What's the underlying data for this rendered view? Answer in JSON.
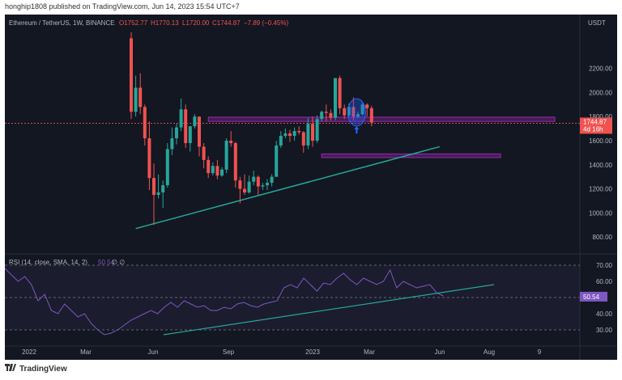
{
  "publisher": "honghip1808 published on TradingView.com, Jun 14, 2023 15:54 UTC+7",
  "footer_brand": "TradingView",
  "colors": {
    "background": "#131722",
    "bull": "#26a69a",
    "bear": "#ef5350",
    "trendline": "#26a69a",
    "zone": "#9c27b0",
    "rsi_line": "#7e57c2",
    "highlight": "#2962ff"
  },
  "chart_data": [
    {
      "type": "candlestick",
      "title": "Ethereum / TetherUS, 1W, BINANCE",
      "ohlc_header": {
        "open": "O1752.77",
        "high": "H1770.13",
        "low": "L1720.00",
        "close": "C1744.87",
        "change": "−7.89 (−0.45%)"
      },
      "currency": "USDT",
      "y_ticks": [
        "2200.00",
        "2000.00",
        "1800.00",
        "1600.00",
        "1400.00",
        "1200.00",
        "1000.00",
        "800.00"
      ],
      "ylim": [
        700,
        2500
      ],
      "x_ticks": [
        "2022",
        "Mar",
        "Jun",
        "Sep",
        "2023",
        "Mar",
        "Jun",
        "Aug",
        "9"
      ],
      "last_price": "1744.87",
      "countdown": "4d 16h",
      "candles": [
        [
          2450,
          2500,
          1780,
          1840
        ],
        [
          1840,
          2140,
          1800,
          2040
        ],
        [
          2040,
          2160,
          1820,
          1880
        ],
        [
          1880,
          1900,
          1560,
          1620
        ],
        [
          1620,
          1760,
          1190,
          1290
        ],
        [
          1290,
          1410,
          900,
          1150
        ],
        [
          1150,
          1320,
          1120,
          1170
        ],
        [
          1170,
          1270,
          1040,
          1230
        ],
        [
          1230,
          1580,
          1210,
          1530
        ],
        [
          1530,
          1710,
          1480,
          1620
        ],
        [
          1620,
          1740,
          1570,
          1710
        ],
        [
          1710,
          1950,
          1680,
          1860
        ],
        [
          1860,
          1900,
          1540,
          1580
        ],
        [
          1580,
          1720,
          1510,
          1720
        ],
        [
          1720,
          1820,
          1700,
          1800
        ],
        [
          1800,
          1800,
          1470,
          1550
        ],
        [
          1550,
          1580,
          1370,
          1440
        ],
        [
          1440,
          1470,
          1290,
          1330
        ],
        [
          1330,
          1420,
          1310,
          1390
        ],
        [
          1390,
          1440,
          1280,
          1310
        ],
        [
          1310,
          1380,
          1300,
          1360
        ],
        [
          1360,
          1620,
          1330,
          1600
        ],
        [
          1600,
          1680,
          1550,
          1580
        ],
        [
          1580,
          1590,
          1210,
          1270
        ],
        [
          1270,
          1300,
          1080,
          1200
        ],
        [
          1200,
          1320,
          1150,
          1170
        ],
        [
          1170,
          1310,
          1160,
          1260
        ],
        [
          1260,
          1350,
          1230,
          1300
        ],
        [
          1300,
          1310,
          1150,
          1220
        ],
        [
          1220,
          1250,
          1190,
          1230
        ],
        [
          1230,
          1280,
          1190,
          1250
        ],
        [
          1250,
          1320,
          1220,
          1300
        ],
        [
          1300,
          1600,
          1300,
          1560
        ],
        [
          1560,
          1680,
          1540,
          1640
        ],
        [
          1640,
          1700,
          1620,
          1660
        ],
        [
          1660,
          1690,
          1590,
          1640
        ],
        [
          1640,
          1710,
          1600,
          1680
        ],
        [
          1680,
          1720,
          1650,
          1670
        ],
        [
          1670,
          1680,
          1500,
          1560
        ],
        [
          1560,
          1790,
          1530,
          1740
        ],
        [
          1740,
          1800,
          1550,
          1600
        ],
        [
          1600,
          1810,
          1580,
          1780
        ],
        [
          1780,
          1850,
          1760,
          1840
        ],
        [
          1840,
          1900,
          1760,
          1830
        ],
        [
          1830,
          1860,
          1770,
          1790
        ],
        [
          1790,
          2120,
          1770,
          2120
        ],
        [
          2120,
          2140,
          1820,
          1870
        ],
        [
          1870,
          1900,
          1780,
          1810
        ],
        [
          1810,
          1910,
          1800,
          1880
        ],
        [
          1880,
          1960,
          1770,
          1800
        ],
        [
          1800,
          1840,
          1790,
          1820
        ],
        [
          1820,
          1920,
          1810,
          1900
        ],
        [
          1900,
          1910,
          1800,
          1870
        ],
        [
          1870,
          1890,
          1720,
          1750
        ]
      ],
      "resistance_zone": [
        1760,
        1795
      ],
      "support_zone": [
        1460,
        1490
      ],
      "rising_trendline": [
        [
          1,
          870
        ],
        [
          68,
          1550
        ]
      ]
    },
    {
      "type": "line",
      "title": "RSI (14, close, SMA, 14, 2)",
      "last_value": "50.54",
      "y_ticks": [
        "70.00",
        "60.00",
        "40.00",
        "30.00"
      ],
      "ylim": [
        25,
        75
      ],
      "levels": [
        70,
        50,
        30
      ],
      "values": [
        68,
        64,
        60,
        63,
        58,
        48,
        52,
        42,
        40,
        46,
        42,
        38,
        40,
        34,
        30,
        27,
        28,
        30,
        33,
        36,
        38,
        40,
        42,
        40,
        44,
        47,
        44,
        48,
        46,
        44,
        45,
        42,
        42,
        44,
        43,
        46,
        47,
        45,
        44,
        46,
        47,
        48,
        56,
        58,
        56,
        62,
        58,
        54,
        59,
        58,
        62,
        65,
        61,
        58,
        62,
        60,
        58,
        60,
        67,
        56,
        60,
        58,
        56,
        57,
        58,
        53,
        51
      ],
      "rising_trendline": [
        [
          0,
          27
        ],
        [
          62,
          58
        ]
      ]
    }
  ]
}
